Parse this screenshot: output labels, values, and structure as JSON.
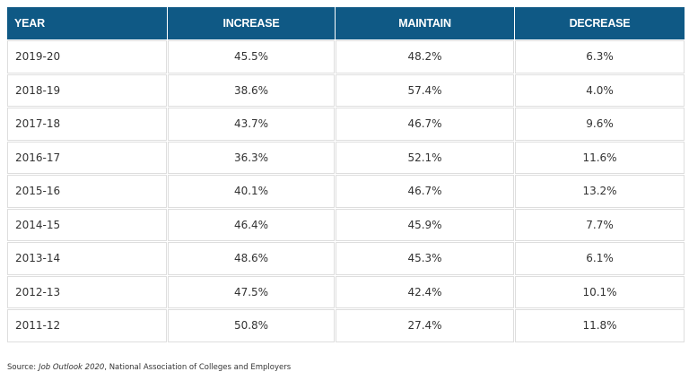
{
  "table": {
    "header": [
      "YEAR",
      "INCREASE",
      "MAINTAIN",
      "DECREASE"
    ],
    "rows": [
      [
        "2019-20",
        "45.5%",
        "48.2%",
        "6.3%"
      ],
      [
        "2018-19",
        "38.6%",
        "57.4%",
        "4.0%"
      ],
      [
        "2017-18",
        "43.7%",
        "46.7%",
        "9.6%"
      ],
      [
        "2016-17",
        "36.3%",
        "52.1%",
        "11.6%"
      ],
      [
        "2015-16",
        "40.1%",
        "46.7%",
        "13.2%"
      ],
      [
        "2014-15",
        "46.4%",
        "45.9%",
        "7.7%"
      ],
      [
        "2013-14",
        "48.6%",
        "45.3%",
        "6.1%"
      ],
      [
        "2012-13",
        "47.5%",
        "42.4%",
        "10.1%"
      ],
      [
        "2011-12",
        "50.8%",
        "27.4%",
        "11.8%"
      ]
    ]
  },
  "source": {
    "prefix": "Source:",
    "title": "Job Outlook 2020",
    "rest": ", National Association of Colleges and Employers"
  }
}
